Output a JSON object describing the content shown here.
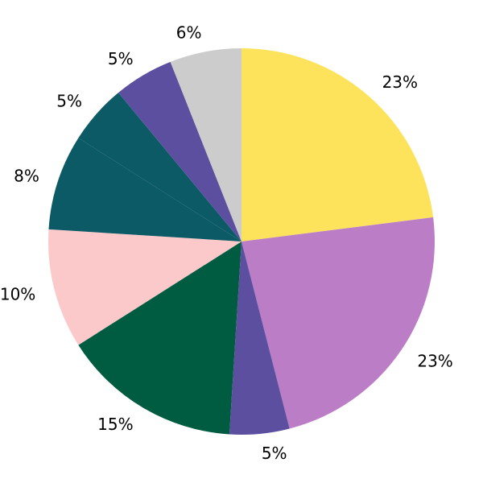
{
  "figure": {
    "background_color": "#ffffff"
  },
  "chart_data": {
    "type": "pie",
    "title": "",
    "legend": "none",
    "grid": "off",
    "start_angle_deg": 90,
    "direction": "clockwise",
    "label_distance_ratio": 1.1,
    "label_color": "#000000",
    "total": 100,
    "slices": [
      {
        "label": "23%",
        "value": 23,
        "color": "#FDE35C"
      },
      {
        "label": "23%",
        "value": 23,
        "color": "#BB7EC6"
      },
      {
        "label": "5%",
        "value": 5,
        "color": "#5D4F9F"
      },
      {
        "label": "15%",
        "value": 15,
        "color": "#005C41"
      },
      {
        "label": "10%",
        "value": 10,
        "color": "#FCC9CB"
      },
      {
        "label": "8%",
        "value": 8,
        "color": "#0C5A66"
      },
      {
        "label": "5%",
        "value": 5,
        "color": "#0C5A66"
      },
      {
        "label": "5%",
        "value": 5,
        "color": "#5D4F9F"
      },
      {
        "label": "6%",
        "value": 6,
        "color": "#CCCCCC"
      }
    ]
  }
}
